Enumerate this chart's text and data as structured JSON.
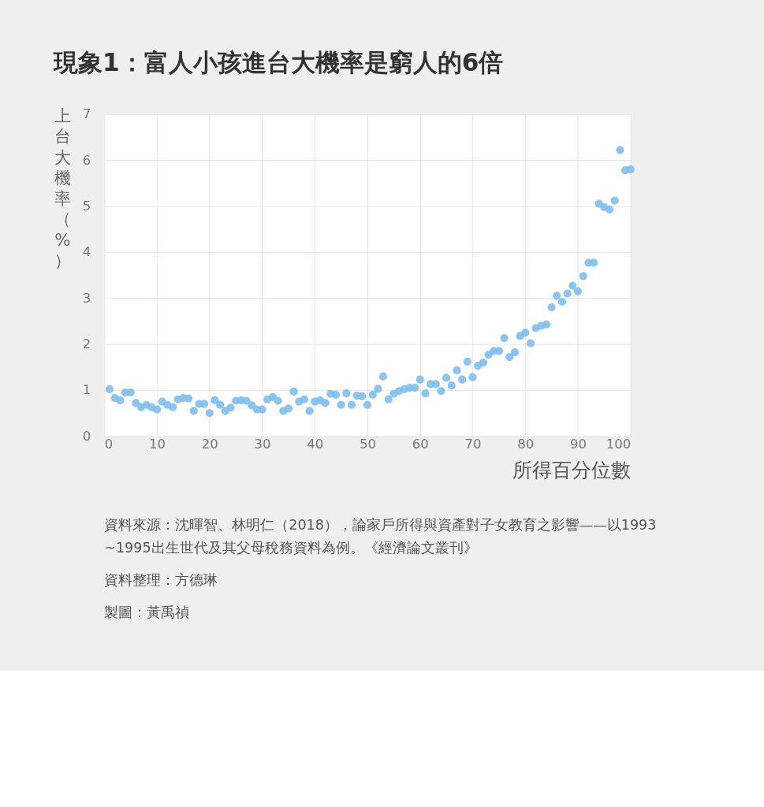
{
  "chart_data": {
    "type": "scatter",
    "title": "現象1：富人小孩進台大機率是窮人的6倍",
    "xlabel": "所得百分位數",
    "ylabel": "上台大機率（%）",
    "x": [
      1,
      2,
      3,
      4,
      5,
      6,
      7,
      8,
      9,
      10,
      11,
      12,
      13,
      14,
      15,
      16,
      17,
      18,
      19,
      20,
      21,
      22,
      23,
      24,
      25,
      26,
      27,
      28,
      29,
      30,
      31,
      32,
      33,
      34,
      35,
      36,
      37,
      38,
      39,
      40,
      41,
      42,
      43,
      44,
      45,
      46,
      47,
      48,
      49,
      50,
      51,
      52,
      53,
      54,
      55,
      56,
      57,
      58,
      59,
      60,
      61,
      62,
      63,
      64,
      65,
      66,
      67,
      68,
      69,
      70,
      71,
      72,
      73,
      74,
      75,
      76,
      77,
      78,
      79,
      80,
      81,
      82,
      83,
      84,
      85,
      86,
      87,
      88,
      89,
      90,
      91,
      92,
      93,
      94,
      95,
      96,
      97,
      98,
      99,
      100
    ],
    "series": [
      {
        "color": "#7dbef0",
        "values": [
          1.02,
          0.83,
          0.78,
          0.95,
          0.95,
          0.72,
          0.63,
          0.68,
          0.63,
          0.58,
          0.75,
          0.68,
          0.63,
          0.8,
          0.83,
          0.82,
          0.55,
          0.7,
          0.7,
          0.5,
          0.78,
          0.68,
          0.55,
          0.62,
          0.77,
          0.78,
          0.77,
          0.67,
          0.58,
          0.58,
          0.8,
          0.85,
          0.77,
          0.55,
          0.6,
          0.97,
          0.75,
          0.8,
          0.55,
          0.75,
          0.78,
          0.72,
          0.92,
          0.9,
          0.68,
          0.93,
          0.68,
          0.88,
          0.87,
          0.68,
          0.9,
          1.03,
          1.3,
          0.8,
          0.92,
          0.98,
          1.02,
          1.05,
          1.05,
          1.23,
          0.93,
          1.13,
          1.13,
          0.98,
          1.27,
          1.1,
          1.43,
          1.23,
          1.62,
          1.28,
          1.53,
          1.6,
          1.77,
          1.85,
          1.85,
          2.13,
          1.72,
          1.82,
          2.18,
          2.25,
          2.02,
          2.35,
          2.4,
          2.43,
          2.8,
          3.05,
          2.92,
          3.1,
          3.27,
          3.15,
          3.48,
          3.77,
          3.77,
          5.05,
          4.98,
          4.93,
          5.12,
          6.22,
          5.78,
          5.8
        ]
      }
    ],
    "xlim": [
      0,
      100
    ],
    "ylim": [
      0,
      7
    ],
    "xticks": [
      0,
      10,
      20,
      30,
      40,
      50,
      60,
      70,
      80,
      90,
      100
    ],
    "yticks": [
      0,
      1,
      2,
      3,
      4,
      5,
      6,
      7
    ],
    "grid": true,
    "marker": "circle",
    "annotations": [
      "資料來源：沈暉智、林明仁（2018），論家戶所得與資產對子女教育之影響——以1993~1995出生世代及其父母稅務資料為例。《經濟論文叢刊》",
      "資料整理：方德琳",
      "製圖：黃禹禎"
    ]
  }
}
